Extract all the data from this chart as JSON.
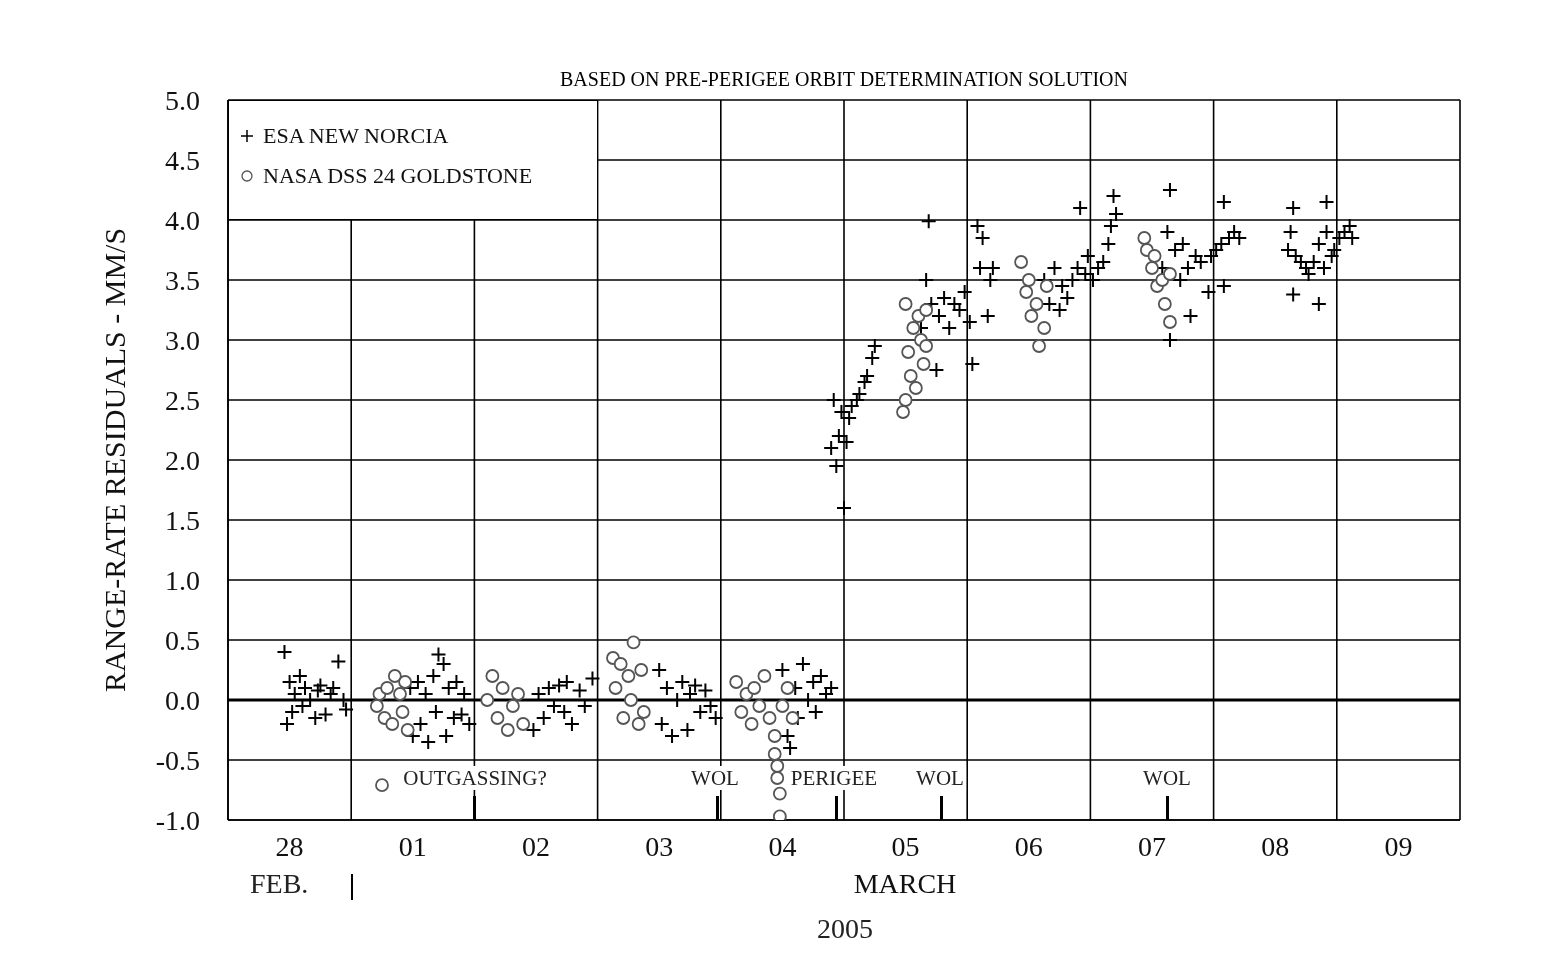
{
  "chart_data": {
    "type": "scatter",
    "title": "BASED ON PRE-PERIGEE ORBIT DETERMINATION SOLUTION",
    "xlabel": "MARCH",
    "ylabel": "RANGE-RATE RESIDUALS - MM/S",
    "annotations": [
      "FEB.",
      "2005",
      "OUTGASSING?",
      "WOL",
      "PERIGEE",
      "WOL",
      "WOL"
    ],
    "xlim": [
      "2005-02-28T00:00",
      "2005-03-10T00:00"
    ],
    "xticks": [
      {
        "value": "2005-02-28T00:00",
        "label": null
      },
      {
        "value": "2005-02-28T12:00",
        "label": "28"
      },
      {
        "value": "2005-03-01T00:00",
        "label": null
      },
      {
        "value": "2005-03-01T12:00",
        "label": "01"
      },
      {
        "value": "2005-03-02T00:00",
        "label": null
      },
      {
        "value": "2005-03-02T12:00",
        "label": "02"
      },
      {
        "value": "2005-03-03T00:00",
        "label": null
      },
      {
        "value": "2005-03-03T12:00",
        "label": "03"
      },
      {
        "value": "2005-03-04T00:00",
        "label": null
      },
      {
        "value": "2005-03-04T12:00",
        "label": "04"
      },
      {
        "value": "2005-03-05T00:00",
        "label": null
      },
      {
        "value": "2005-03-05T12:00",
        "label": "05"
      },
      {
        "value": "2005-03-06T00:00",
        "label": null
      },
      {
        "value": "2005-03-06T12:00",
        "label": "06"
      },
      {
        "value": "2005-03-07T00:00",
        "label": null
      },
      {
        "value": "2005-03-07T12:00",
        "label": "07"
      },
      {
        "value": "2005-03-08T00:00",
        "label": null
      },
      {
        "value": "2005-03-08T12:00",
        "label": "08"
      },
      {
        "value": "2005-03-09T00:00",
        "label": null
      },
      {
        "value": "2005-03-09T12:00",
        "label": "09"
      },
      {
        "value": "2005-03-10T00:00",
        "label": null
      }
    ],
    "ylim": [
      -1,
      5
    ],
    "yticks": [
      {
        "value": -1,
        "label": "-1.0"
      },
      {
        "value": -0.5,
        "label": "-0.5"
      },
      {
        "value": 0,
        "label": "0.0"
      },
      {
        "value": 0.5,
        "label": "0.5"
      },
      {
        "value": 1,
        "label": "1.0"
      },
      {
        "value": 1.5,
        "label": "1.5"
      },
      {
        "value": 2,
        "label": "2.0"
      },
      {
        "value": 2.5,
        "label": "2.5"
      },
      {
        "value": 3,
        "label": "3.0"
      },
      {
        "value": 3.5,
        "label": "3.5"
      },
      {
        "value": 4,
        "label": "4.0"
      },
      {
        "value": 4.5,
        "label": "4.5"
      },
      {
        "value": 5,
        "label": "5.0"
      }
    ],
    "grid": true,
    "legend": "top left",
    "ref_lines": [
      {
        "axis": "y",
        "value": 0,
        "color": "#000000"
      }
    ],
    "series": [
      {
        "name": "ESA NEW NORCIA",
        "color": "#000000",
        "marker": "cross",
        "x": [
          "2005-02-28T11:00",
          "2005-02-28T11:30",
          "2005-02-28T12:00",
          "2005-02-28T12:30",
          "2005-02-28T13:00",
          "2005-02-28T14:00",
          "2005-02-28T14:30",
          "2005-02-28T15:00",
          "2005-02-28T16:00",
          "2005-02-28T17:00",
          "2005-02-28T17:30",
          "2005-02-28T18:00",
          "2005-02-28T19:00",
          "2005-02-28T20:00",
          "2005-02-28T20:30",
          "2005-02-28T21:30",
          "2005-02-28T22:30",
          "2005-02-28T23:00",
          "2005-03-01T11:30",
          "2005-03-01T12:00",
          "2005-03-01T13:00",
          "2005-03-01T13:30",
          "2005-03-01T14:30",
          "2005-03-01T15:00",
          "2005-03-01T16:00",
          "2005-03-01T16:30",
          "2005-03-01T17:00",
          "2005-03-01T18:00",
          "2005-03-01T18:30",
          "2005-03-01T19:00",
          "2005-03-01T20:00",
          "2005-03-01T20:30",
          "2005-03-01T21:30",
          "2005-03-01T22:00",
          "2005-03-01T23:00",
          "2005-03-02T11:30",
          "2005-03-02T12:30",
          "2005-03-02T13:30",
          "2005-03-02T14:30",
          "2005-03-02T15:30",
          "2005-03-02T16:30",
          "2005-03-02T17:30",
          "2005-03-02T18:00",
          "2005-03-02T19:00",
          "2005-03-02T20:30",
          "2005-03-02T21:30",
          "2005-03-02T23:00",
          "2005-03-03T12:00",
          "2005-03-03T12:30",
          "2005-03-03T13:30",
          "2005-03-03T14:30",
          "2005-03-03T15:30",
          "2005-03-03T16:30",
          "2005-03-03T17:30",
          "2005-03-03T18:00",
          "2005-03-03T19:00",
          "2005-03-03T20:00",
          "2005-03-03T21:00",
          "2005-03-03T22:00",
          "2005-03-03T23:00",
          "2005-03-04T12:00",
          "2005-03-04T13:00",
          "2005-03-04T13:30",
          "2005-03-04T14:30",
          "2005-03-04T15:00",
          "2005-03-04T16:00",
          "2005-03-04T17:00",
          "2005-03-04T18:00",
          "2005-03-04T18:30",
          "2005-03-04T19:30",
          "2005-03-04T20:30",
          "2005-03-04T21:30",
          "2005-03-04T21:30",
          "2005-03-04T22:00",
          "2005-03-04T22:30",
          "2005-03-04T23:00",
          "2005-03-04T23:30",
          "2005-03-05T00:00",
          "2005-03-05T00:30",
          "2005-03-05T01:00",
          "2005-03-05T01:30",
          "2005-03-05T02:30",
          "2005-03-05T03:00",
          "2005-03-05T04:00",
          "2005-03-05T04:30",
          "2005-03-05T05:30",
          "2005-03-05T06:00",
          "2005-03-05T15:00",
          "2005-03-05T16:00",
          "2005-03-05T16:30",
          "2005-03-05T17:00",
          "2005-03-05T18:00",
          "2005-03-05T18:30",
          "2005-03-05T19:30",
          "2005-03-05T20:30",
          "2005-03-05T21:30",
          "2005-03-05T22:30",
          "2005-03-05T23:30",
          "2005-03-06T00:30",
          "2005-03-06T01:00",
          "2005-03-06T02:00",
          "2005-03-06T02:30",
          "2005-03-06T03:00",
          "2005-03-06T04:00",
          "2005-03-06T04:30",
          "2005-03-06T05:00",
          "2005-03-06T15:00",
          "2005-03-06T16:00",
          "2005-03-06T17:00",
          "2005-03-06T18:00",
          "2005-03-06T18:30",
          "2005-03-06T19:30",
          "2005-03-06T20:30",
          "2005-03-06T21:30",
          "2005-03-06T22:00",
          "2005-03-06T23:00",
          "2005-03-06T23:30",
          "2005-03-07T00:30",
          "2005-03-07T01:30",
          "2005-03-07T02:30",
          "2005-03-07T03:30",
          "2005-03-07T04:00",
          "2005-03-07T04:30",
          "2005-03-07T05:00",
          "2005-03-07T14:00",
          "2005-03-07T15:00",
          "2005-03-07T15:30",
          "2005-03-07T15:30",
          "2005-03-07T16:30",
          "2005-03-07T17:30",
          "2005-03-07T18:00",
          "2005-03-07T19:00",
          "2005-03-07T19:30",
          "2005-03-07T20:30",
          "2005-03-07T21:30",
          "2005-03-07T23:00",
          "2005-03-07T23:30",
          "2005-03-08T00:30",
          "2005-03-08T01:30",
          "2005-03-08T02:00",
          "2005-03-08T02:00",
          "2005-03-08T03:00",
          "2005-03-08T04:00",
          "2005-03-08T05:00",
          "2005-03-08T14:30",
          "2005-03-08T15:00",
          "2005-03-08T15:30",
          "2005-03-08T15:30",
          "2005-03-08T16:00",
          "2005-03-08T17:00",
          "2005-03-08T18:00",
          "2005-03-08T18:30",
          "2005-03-08T19:30",
          "2005-03-08T20:30",
          "2005-03-08T20:30",
          "2005-03-08T21:30",
          "2005-03-08T22:00",
          "2005-03-08T22:00",
          "2005-03-08T23:00",
          "2005-03-08T23:30",
          "2005-03-09T00:30",
          "2005-03-09T01:30",
          "2005-03-09T02:30",
          "2005-03-09T03:00"
        ],
        "values": [
          0.4,
          -0.2,
          0.15,
          -0.1,
          0.05,
          0.2,
          -0.05,
          0.1,
          0.0,
          -0.15,
          0.08,
          0.12,
          -0.12,
          0.05,
          0.1,
          0.32,
          0.0,
          -0.08,
          0.1,
          -0.3,
          0.15,
          -0.2,
          0.05,
          -0.35,
          0.2,
          -0.1,
          0.38,
          0.3,
          -0.3,
          0.1,
          -0.15,
          0.15,
          -0.12,
          0.05,
          -0.2,
          -0.25,
          0.05,
          -0.15,
          0.1,
          -0.05,
          0.12,
          -0.1,
          0.15,
          -0.2,
          0.08,
          -0.05,
          0.18,
          0.25,
          -0.2,
          0.1,
          -0.3,
          0.0,
          0.15,
          -0.25,
          0.05,
          0.12,
          -0.1,
          0.08,
          -0.05,
          -0.15,
          0.25,
          -0.3,
          -0.4,
          0.1,
          -0.15,
          0.3,
          0.0,
          0.15,
          -0.1,
          0.2,
          0.05,
          0.1,
          2.1,
          2.5,
          1.95,
          2.2,
          2.4,
          1.6,
          2.15,
          2.35,
          2.45,
          2.5,
          2.55,
          2.65,
          2.7,
          2.85,
          2.95,
          3.1,
          3.5,
          3.99,
          3.3,
          2.75,
          3.2,
          3.35,
          3.1,
          3.3,
          3.25,
          3.4,
          3.15,
          2.8,
          3.95,
          3.6,
          3.85,
          3.2,
          3.5,
          3.6,
          3.5,
          3.3,
          3.6,
          3.25,
          3.45,
          3.35,
          3.5,
          3.6,
          4.1,
          3.55,
          3.7,
          3.5,
          3.6,
          3.65,
          3.8,
          3.95,
          4.2,
          4.05,
          3.6,
          3.9,
          4.25,
          3.0,
          3.75,
          3.5,
          3.8,
          3.6,
          3.2,
          3.7,
          3.65,
          3.4,
          3.7,
          3.75,
          3.8,
          4.15,
          3.45,
          3.85,
          3.9,
          3.85,
          3.75,
          3.9,
          4.1,
          3.38,
          3.7,
          3.65,
          3.6,
          3.55,
          3.65,
          3.3,
          3.8,
          3.6,
          4.15,
          3.9,
          3.7,
          3.75,
          3.85,
          3.9,
          3.95,
          3.85
        ]
      },
      {
        "name": "NASA DSS 24 GOLDSTONE",
        "color": "#555555",
        "marker": "circle",
        "x": [
          "2005-03-01T05:00",
          "2005-03-01T05:30",
          "2005-03-01T06:00",
          "2005-03-01T06:30",
          "2005-03-01T07:00",
          "2005-03-01T08:00",
          "2005-03-01T08:30",
          "2005-03-01T09:30",
          "2005-03-01T10:00",
          "2005-03-01T10:30",
          "2005-03-01T11:00",
          "2005-03-02T02:30",
          "2005-03-02T03:30",
          "2005-03-02T04:30",
          "2005-03-02T05:30",
          "2005-03-02T06:30",
          "2005-03-02T07:30",
          "2005-03-02T08:30",
          "2005-03-02T09:30",
          "2005-03-03T03:00",
          "2005-03-03T03:30",
          "2005-03-03T04:30",
          "2005-03-03T05:00",
          "2005-03-03T06:00",
          "2005-03-03T06:30",
          "2005-03-03T07:00",
          "2005-03-03T08:00",
          "2005-03-03T08:30",
          "2005-03-03T09:00",
          "2005-03-04T03:00",
          "2005-03-04T04:00",
          "2005-03-04T05:00",
          "2005-03-04T06:00",
          "2005-03-04T06:30",
          "2005-03-04T07:30",
          "2005-03-04T08:30",
          "2005-03-04T09:30",
          "2005-03-04T10:30",
          "2005-03-04T10:30",
          "2005-03-04T11:00",
          "2005-03-04T11:00",
          "2005-03-04T11:30",
          "2005-03-04T11:30",
          "2005-03-04T12:00",
          "2005-03-04T13:00",
          "2005-03-04T14:00",
          "2005-03-05T11:30",
          "2005-03-05T12:00",
          "2005-03-05T12:00",
          "2005-03-05T12:30",
          "2005-03-05T13:00",
          "2005-03-05T13:30",
          "2005-03-05T14:00",
          "2005-03-05T14:30",
          "2005-03-05T15:00",
          "2005-03-05T15:30",
          "2005-03-05T16:00",
          "2005-03-05T16:00",
          "2005-03-06T10:30",
          "2005-03-06T11:30",
          "2005-03-06T12:00",
          "2005-03-06T12:30",
          "2005-03-06T13:30",
          "2005-03-06T14:00",
          "2005-03-06T15:00",
          "2005-03-06T15:30",
          "2005-03-07T10:30",
          "2005-03-07T11:00",
          "2005-03-07T12:00",
          "2005-03-07T12:30",
          "2005-03-07T13:00",
          "2005-03-07T14:00",
          "2005-03-07T14:30",
          "2005-03-07T15:30",
          "2005-03-07T15:30"
        ],
        "values": [
          -0.05,
          0.05,
          -0.71,
          -0.15,
          0.1,
          -0.2,
          0.2,
          0.05,
          -0.1,
          0.15,
          -0.25,
          0.0,
          0.2,
          -0.15,
          0.1,
          -0.25,
          -0.05,
          0.05,
          -0.2,
          0.35,
          0.1,
          0.3,
          -0.15,
          0.2,
          0.0,
          0.48,
          -0.2,
          0.25,
          -0.1,
          0.15,
          -0.1,
          0.05,
          -0.2,
          0.1,
          -0.05,
          0.2,
          -0.15,
          -0.3,
          -0.45,
          -0.55,
          -0.65,
          -0.78,
          -0.97,
          -0.05,
          0.1,
          -0.15,
          2.4,
          2.5,
          3.3,
          2.9,
          2.7,
          3.1,
          2.6,
          3.2,
          3.0,
          2.8,
          3.25,
          2.95,
          3.65,
          3.4,
          3.5,
          3.2,
          3.3,
          2.95,
          3.1,
          3.45,
          3.85,
          3.75,
          3.6,
          3.7,
          3.45,
          3.5,
          3.3,
          3.15,
          3.55
        ]
      }
    ]
  }
}
